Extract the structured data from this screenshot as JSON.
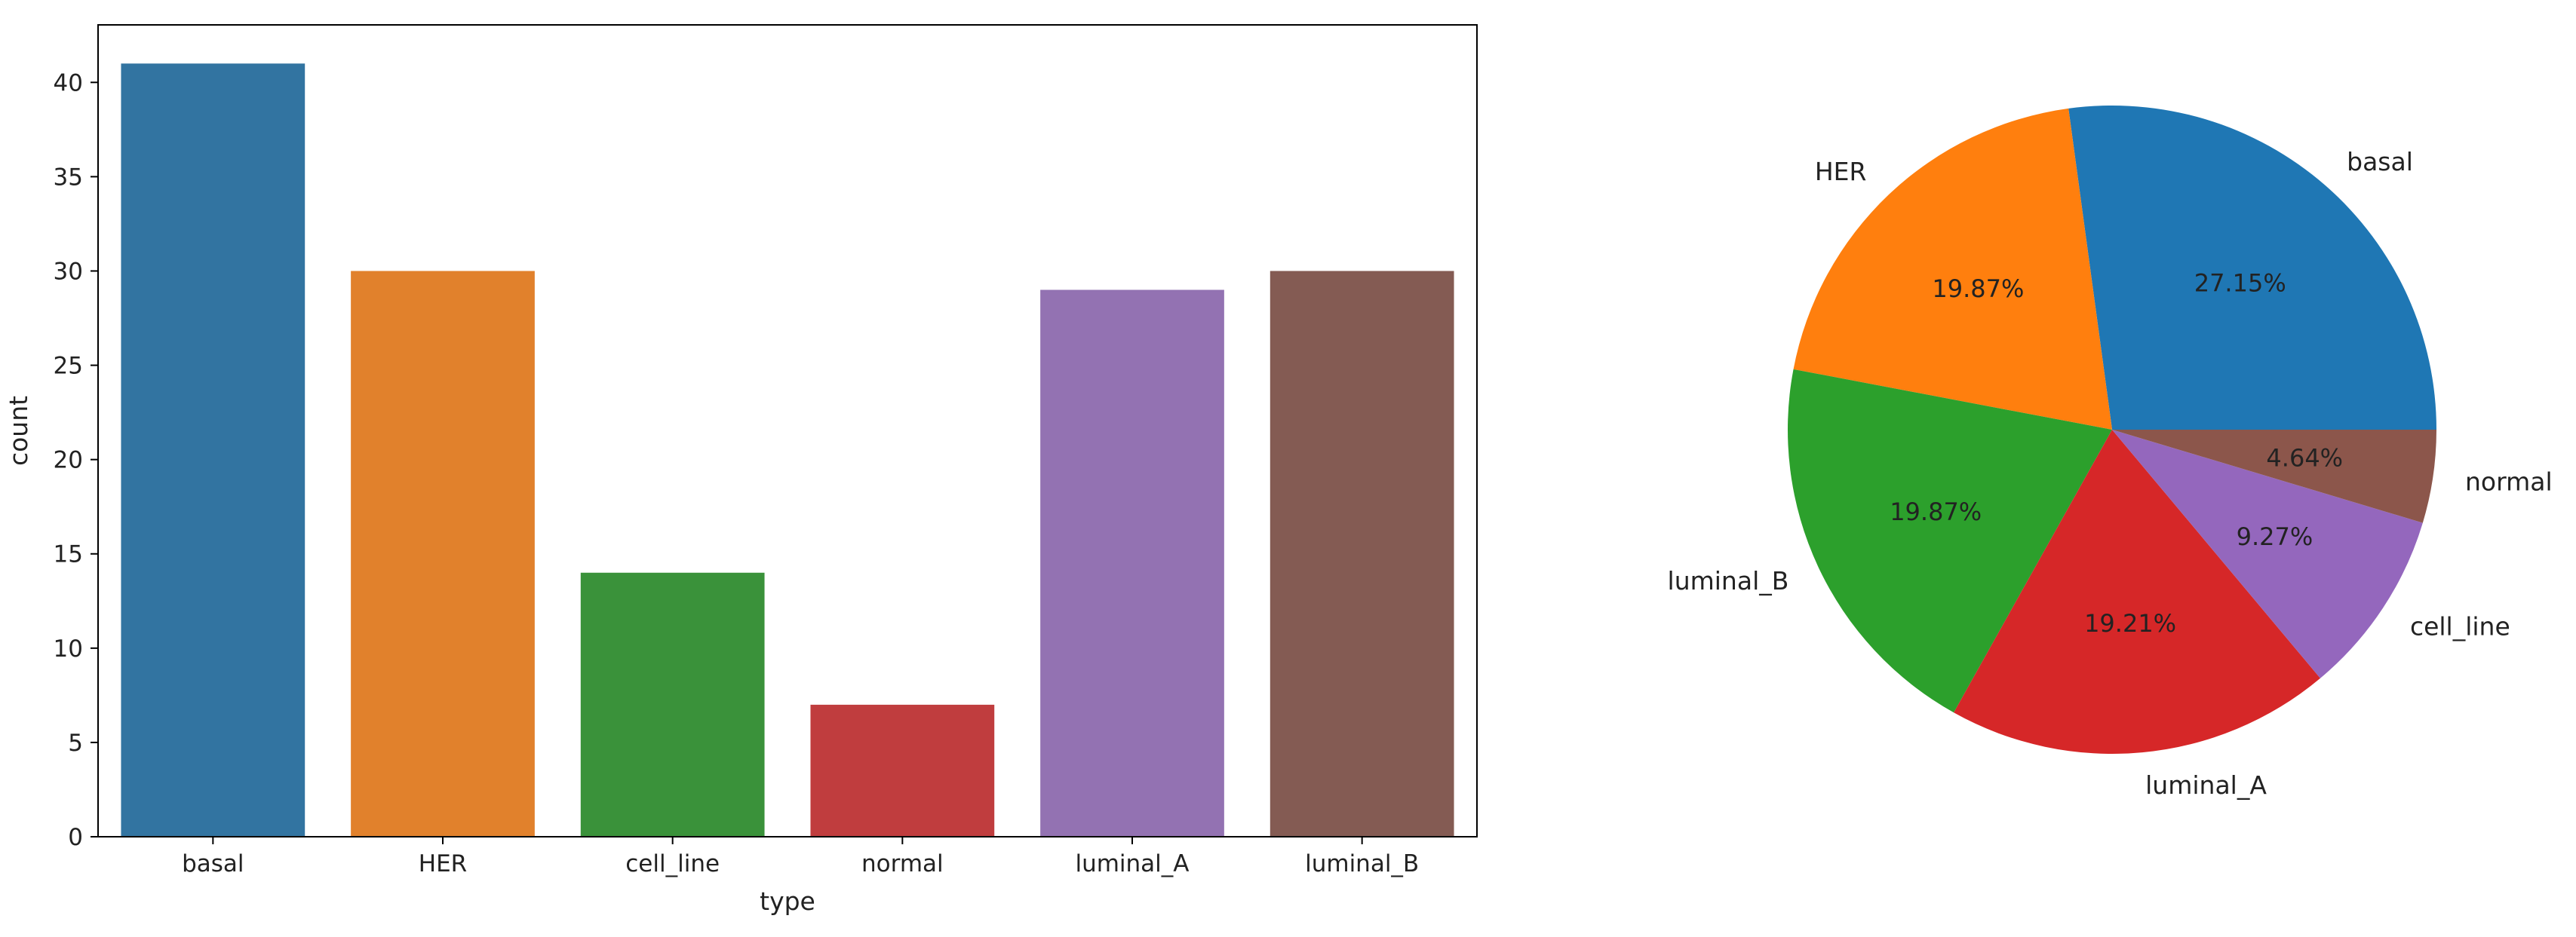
{
  "chart_data": [
    {
      "type": "bar",
      "xlabel": "type",
      "ylabel": "count",
      "categories": [
        "basal",
        "HER",
        "cell_line",
        "normal",
        "luminal_A",
        "luminal_B"
      ],
      "values": [
        41,
        30,
        14,
        7,
        29,
        30
      ],
      "colors": [
        "#3274a1",
        "#e1812c",
        "#3a923a",
        "#c03d3e",
        "#9372b2",
        "#845b53"
      ],
      "ylim": [
        0,
        43.05
      ],
      "yticks": [
        0,
        5,
        10,
        15,
        20,
        25,
        30,
        35,
        40
      ],
      "grid": false
    },
    {
      "type": "pie",
      "slices": [
        {
          "label": "basal",
          "percent": 27.15,
          "pct_label": "27.15%",
          "color": "#1f77b4"
        },
        {
          "label": "HER",
          "percent": 19.87,
          "pct_label": "19.87%",
          "color": "#ff7f0e"
        },
        {
          "label": "luminal_B",
          "percent": 19.87,
          "pct_label": "19.87%",
          "color": "#2ca02c"
        },
        {
          "label": "luminal_A",
          "percent": 19.21,
          "pct_label": "19.21%",
          "color": "#d62728"
        },
        {
          "label": "cell_line",
          "percent": 9.27,
          "pct_label": "9.27%",
          "color": "#9467bd"
        },
        {
          "label": "normal",
          "percent": 4.64,
          "pct_label": "4.64%",
          "color": "#8c564b"
        }
      ],
      "start_angle_deg": 0,
      "direction": "counterclockwise"
    }
  ]
}
